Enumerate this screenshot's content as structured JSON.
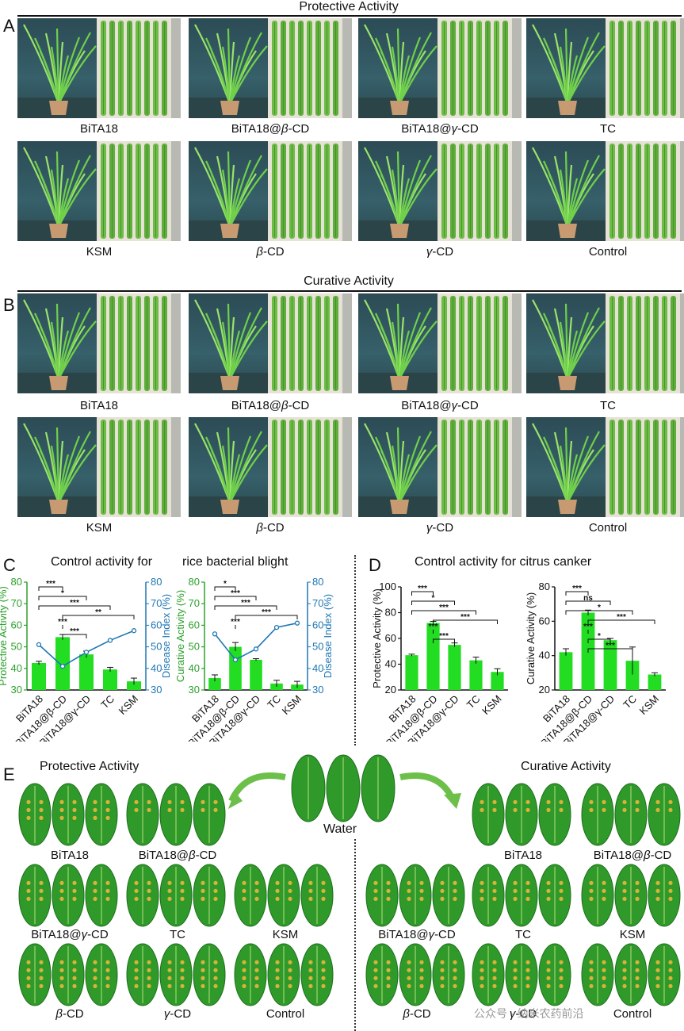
{
  "panels": {
    "a": "A",
    "b": "B",
    "c": "C",
    "d": "D",
    "e": "E"
  },
  "section_a": {
    "title": "Protective Activity",
    "row1": [
      "BiTA18",
      "BiTA18@β-CD",
      "BiTA18@γ-CD",
      "TC"
    ],
    "row2": [
      "KSM",
      "β-CD",
      "γ-CD",
      "Control"
    ]
  },
  "section_b": {
    "title": "Curative Activity",
    "row1": [
      "BiTA18",
      "BiTA18@β-CD",
      "BiTA18@γ-CD",
      "TC"
    ],
    "row2": [
      "KSM",
      "β-CD",
      "γ-CD",
      "Control"
    ]
  },
  "section_c": {
    "title_left": "Control activity for",
    "title_right": "rice bacterial blight"
  },
  "section_d": {
    "title": "Control activity for citrus canker"
  },
  "section_e": {
    "left_title": "Protective Activity",
    "right_title": "Curative Activity",
    "center_label": "Water",
    "left_labels": [
      "BiTA18",
      "BiTA18@β-CD",
      "BiTA18@γ-CD",
      "TC",
      "KSM",
      "β-CD",
      "γ-CD",
      "Control"
    ],
    "right_labels": [
      "BiTA18",
      "BiTA18@β-CD",
      "BiTA18@γ-CD",
      "TC",
      "KSM",
      "β-CD",
      "γ-CD",
      "Control"
    ]
  },
  "watermark": "公众号 · 纳米农药前沿",
  "colors": {
    "bar": "#22dd22",
    "line": "#1f77b4",
    "axis_left": "#2ca02c",
    "axis_right": "#1f77b4"
  },
  "chart_data": [
    {
      "type": "bar",
      "categories": [
        "BiTA18",
        "BiTA18@β-CD",
        "BiTA18@γ-CD",
        "TC",
        "KSM"
      ],
      "values": [
        42.5,
        54.5,
        46.5,
        39.5,
        34
      ],
      "errors": [
        0.8,
        1.2,
        1.5,
        1.0,
        1.5
      ],
      "ylabel": "Protective Activity (%)",
      "ylim": [
        30,
        80
      ],
      "yticks": [
        30,
        40,
        50,
        60,
        70,
        80
      ],
      "secondary": {
        "type": "line",
        "name": "Disease Index (%)",
        "values": [
          51,
          41,
          47.5,
          53,
          57.5
        ],
        "ylim": [
          30,
          80
        ],
        "yticks": [
          30,
          40,
          50,
          60,
          70,
          80
        ],
        "ylabel": "Disease Index (%)"
      },
      "significance": [
        "***",
        "*",
        "***",
        "**",
        "***",
        "***"
      ]
    },
    {
      "type": "bar",
      "categories": [
        "BiTA18",
        "BiTA18@β-CD",
        "BiTA18@γ-CD",
        "TC",
        "KSM"
      ],
      "values": [
        35.5,
        50,
        44,
        33,
        32.5
      ],
      "errors": [
        1.5,
        2.0,
        0.5,
        1.5,
        1.5
      ],
      "ylabel": "Curative Activity (%)",
      "ylim": [
        30,
        80
      ],
      "yticks": [
        30,
        40,
        50,
        60,
        70,
        80
      ],
      "secondary": {
        "type": "line",
        "name": "Disease Index (%)",
        "values": [
          56,
          44,
          49,
          59,
          61
        ],
        "ylim": [
          30,
          80
        ],
        "yticks": [
          30,
          40,
          50,
          60,
          70,
          80
        ],
        "ylabel": "Disease Index (%)"
      },
      "significance": [
        "*",
        "***",
        "***",
        "***",
        "***"
      ]
    },
    {
      "type": "bar",
      "categories": [
        "BiTA18",
        "BiTA18@β-CD",
        "BiTA18@γ-CD",
        "TC",
        "KSM"
      ],
      "values": [
        47,
        72,
        55,
        43,
        34
      ],
      "errors": [
        0.8,
        1.2,
        1.5,
        2.5,
        2.5
      ],
      "ylabel": "Protective Activity (%)",
      "ylim": [
        20,
        100
      ],
      "yticks": [
        20,
        40,
        60,
        80,
        100
      ],
      "significance": [
        "***",
        "*",
        "***",
        "***",
        "***",
        "***"
      ]
    },
    {
      "type": "bar",
      "categories": [
        "BiTA18",
        "BiTA18@β-CD",
        "BiTA18@γ-CD",
        "TC",
        "KSM"
      ],
      "values": [
        42,
        65,
        49,
        37,
        29
      ],
      "errors": [
        2.0,
        1.5,
        1.0,
        8.0,
        1.0
      ],
      "ylabel": "Curative Activity (%)",
      "ylim": [
        20,
        80
      ],
      "yticks": [
        20,
        40,
        60,
        80
      ],
      "significance": [
        "***",
        "ns",
        "*",
        "***",
        "***",
        "*",
        "***"
      ]
    }
  ]
}
